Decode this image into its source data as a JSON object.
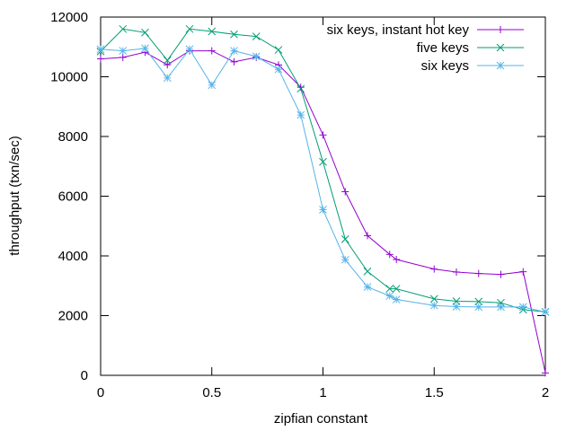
{
  "chart_data": {
    "type": "line",
    "title": "",
    "xlabel": "zipfian constant",
    "ylabel": "throughput (txn/sec)",
    "xlim": [
      0,
      2
    ],
    "ylim": [
      0,
      12000
    ],
    "xticks": [
      0,
      0.5,
      1,
      1.5,
      2
    ],
    "xtick_labels": [
      "0",
      "0.5",
      "1",
      "1.5",
      "2"
    ],
    "yticks": [
      0,
      2000,
      4000,
      6000,
      8000,
      10000,
      12000
    ],
    "ytick_labels": [
      "0",
      "2000",
      "4000",
      "6000",
      "8000",
      "10000",
      "12000"
    ],
    "grid": false,
    "legend_position": "top-right",
    "series": [
      {
        "name": "six keys, instant hot key",
        "color": "#9400d3",
        "marker": "plus",
        "x": [
          0,
          0.1,
          0.2,
          0.3,
          0.4,
          0.5,
          0.6,
          0.7,
          0.8,
          0.9,
          1.0,
          1.1,
          1.2,
          1.3,
          1.33,
          1.5,
          1.6,
          1.7,
          1.8,
          1.9,
          2.0
        ],
        "y": [
          10600,
          10650,
          10820,
          10400,
          10870,
          10870,
          10500,
          10650,
          10400,
          9650,
          8050,
          6150,
          4680,
          4050,
          3880,
          3560,
          3460,
          3410,
          3380,
          3470,
          80
        ]
      },
      {
        "name": "five keys",
        "color": "#009e73",
        "marker": "cross",
        "x": [
          0,
          0.1,
          0.2,
          0.3,
          0.4,
          0.5,
          0.6,
          0.7,
          0.8,
          0.9,
          1.0,
          1.1,
          1.2,
          1.3,
          1.33,
          1.5,
          1.6,
          1.7,
          1.8,
          1.9,
          2.0
        ],
        "y": [
          10850,
          11600,
          11480,
          10550,
          11600,
          11520,
          11420,
          11350,
          10900,
          9600,
          7150,
          4560,
          3480,
          2900,
          2900,
          2560,
          2480,
          2470,
          2430,
          2200,
          2130
        ]
      },
      {
        "name": "six keys",
        "color": "#56b4e9",
        "marker": "star",
        "x": [
          0,
          0.1,
          0.2,
          0.3,
          0.4,
          0.5,
          0.6,
          0.7,
          0.8,
          0.9,
          1.0,
          1.1,
          1.2,
          1.3,
          1.33,
          1.5,
          1.6,
          1.7,
          1.8,
          1.9,
          2.0
        ],
        "y": [
          10920,
          10870,
          10950,
          9960,
          10920,
          9720,
          10870,
          10680,
          10250,
          8720,
          5550,
          3870,
          2960,
          2660,
          2540,
          2340,
          2300,
          2290,
          2290,
          2290,
          2120
        ]
      }
    ]
  }
}
